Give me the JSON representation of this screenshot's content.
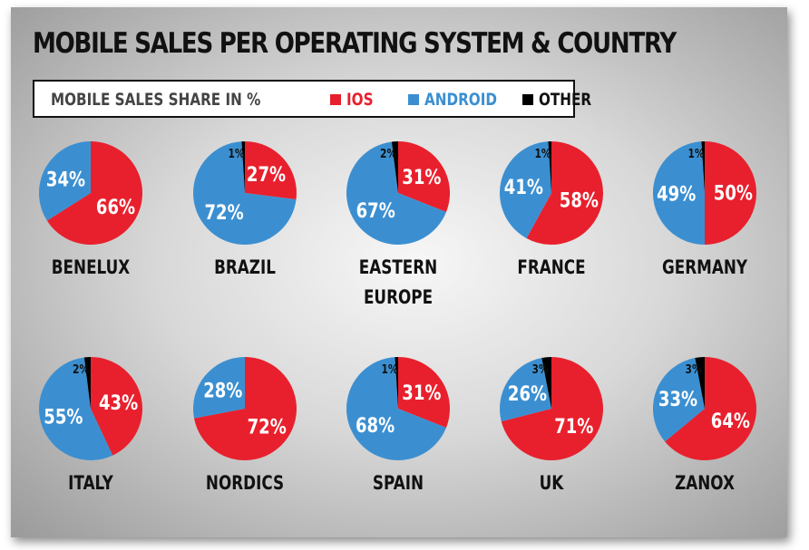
{
  "title": "MOBILE SALES PER OPERATING SYSTEM & COUNTRY",
  "legend": {
    "label": "MOBILE SALES SHARE IN %",
    "items": [
      {
        "name": "IOS",
        "color": "#e8202d",
        "text_color": "#e8202d"
      },
      {
        "name": "ANDROID",
        "color": "#3b8fd1",
        "text_color": "#3b8fd1"
      },
      {
        "name": "OTHER",
        "color": "#000000",
        "text_color": "#111111"
      }
    ]
  },
  "chart_data": {
    "type": "pie",
    "title": "MOBILE SALES PER OPERATING SYSTEM & COUNTRY",
    "subtitle": "MOBILE SALES SHARE IN %",
    "series_names": [
      "IOS",
      "ANDROID",
      "OTHER"
    ],
    "colors": {
      "IOS": "#e8202d",
      "ANDROID": "#3b8fd1",
      "OTHER": "#000000"
    },
    "charts": [
      {
        "region": [
          "BENELUX"
        ],
        "values": {
          "IOS": 66,
          "ANDROID": 34,
          "OTHER": 0
        },
        "labels": {
          "IOS": "66%",
          "ANDROID": "34%",
          "OTHER": ""
        }
      },
      {
        "region": [
          "BRAZIL"
        ],
        "values": {
          "IOS": 27,
          "ANDROID": 72,
          "OTHER": 1
        },
        "labels": {
          "IOS": "27%",
          "ANDROID": "72%",
          "OTHER": "1%"
        }
      },
      {
        "region": [
          "EASTERN",
          "EUROPE"
        ],
        "values": {
          "IOS": 31,
          "ANDROID": 67,
          "OTHER": 2
        },
        "labels": {
          "IOS": "31%",
          "ANDROID": "67%",
          "OTHER": "2%"
        }
      },
      {
        "region": [
          "FRANCE"
        ],
        "values": {
          "IOS": 58,
          "ANDROID": 41,
          "OTHER": 1
        },
        "labels": {
          "IOS": "58%",
          "ANDROID": "41%",
          "OTHER": "1%"
        }
      },
      {
        "region": [
          "GERMANY"
        ],
        "values": {
          "IOS": 50,
          "ANDROID": 49,
          "OTHER": 1
        },
        "labels": {
          "IOS": "50%",
          "ANDROID": "49%",
          "OTHER": "1%"
        }
      },
      {
        "region": [
          "ITALY"
        ],
        "values": {
          "IOS": 43,
          "ANDROID": 55,
          "OTHER": 2
        },
        "labels": {
          "IOS": "43%",
          "ANDROID": "55%",
          "OTHER": "2%"
        }
      },
      {
        "region": [
          "NORDICS"
        ],
        "values": {
          "IOS": 72,
          "ANDROID": 28,
          "OTHER": 0
        },
        "labels": {
          "IOS": "72%",
          "ANDROID": "28%",
          "OTHER": ""
        }
      },
      {
        "region": [
          "SPAIN"
        ],
        "values": {
          "IOS": 31,
          "ANDROID": 68,
          "OTHER": 1
        },
        "labels": {
          "IOS": "31%",
          "ANDROID": "68%",
          "OTHER": "1%"
        }
      },
      {
        "region": [
          "UK"
        ],
        "values": {
          "IOS": 71,
          "ANDROID": 26,
          "OTHER": 3
        },
        "labels": {
          "IOS": "71%",
          "ANDROID": "26%",
          "OTHER": "3%"
        }
      },
      {
        "region": [
          "ZANOX"
        ],
        "values": {
          "IOS": 64,
          "ANDROID": 33,
          "OTHER": 3
        },
        "labels": {
          "IOS": "64%",
          "ANDROID": "33%",
          "OTHER": "3%"
        }
      }
    ]
  }
}
